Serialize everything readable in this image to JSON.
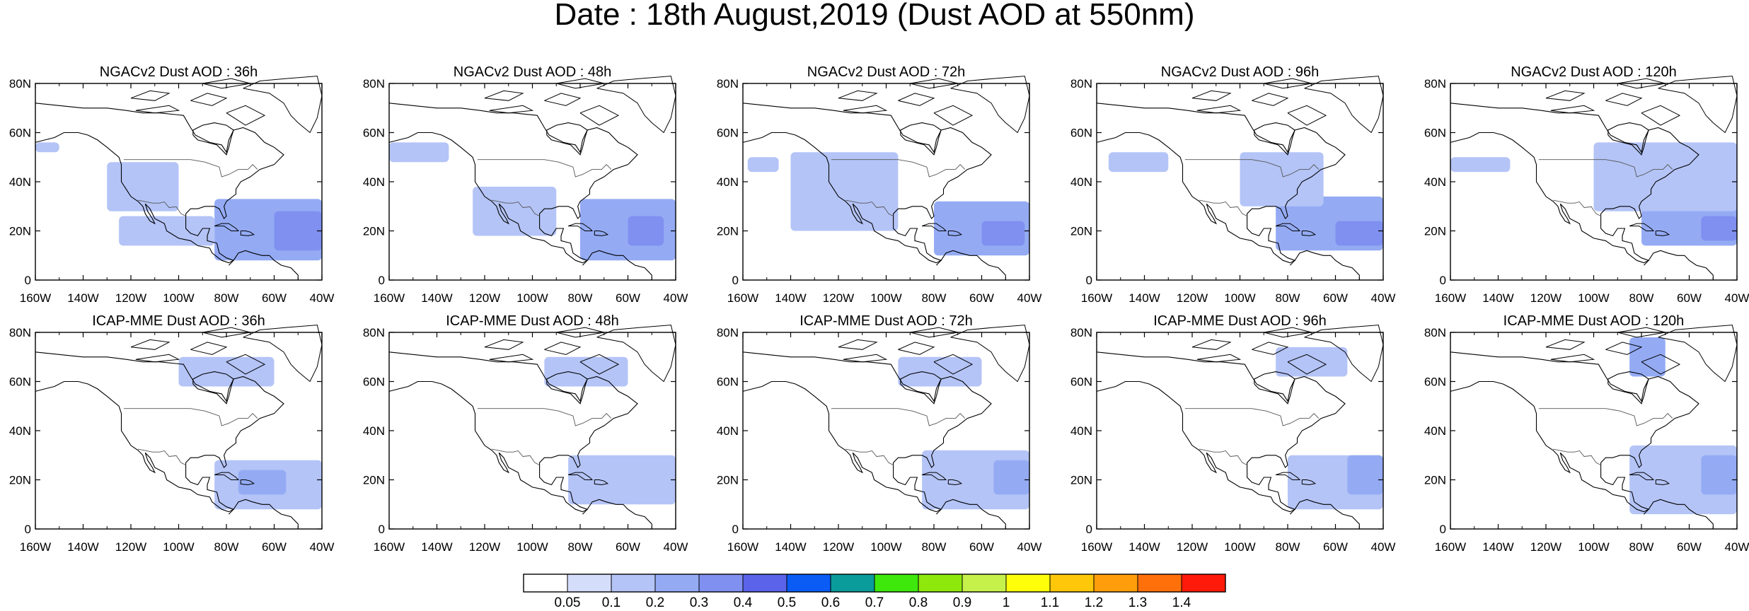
{
  "title": "Date : 18th August,2019 (Dust AOD at 550nm)",
  "panels": [
    {
      "title": "NGACv2 Dust AOD : 36h",
      "model": "NGACv2",
      "lead": "36h"
    },
    {
      "title": "NGACv2 Dust AOD : 48h",
      "model": "NGACv2",
      "lead": "48h"
    },
    {
      "title": "NGACv2 Dust AOD : 72h",
      "model": "NGACv2",
      "lead": "72h"
    },
    {
      "title": "NGACv2 Dust AOD : 96h",
      "model": "NGACv2",
      "lead": "96h"
    },
    {
      "title": "NGACv2 Dust AOD : 120h",
      "model": "NGACv2",
      "lead": "120h"
    },
    {
      "title": "ICAP-MME Dust AOD : 36h",
      "model": "ICAP-MME",
      "lead": "36h"
    },
    {
      "title": "ICAP-MME Dust AOD : 48h",
      "model": "ICAP-MME",
      "lead": "48h"
    },
    {
      "title": "ICAP-MME Dust AOD : 72h",
      "model": "ICAP-MME",
      "lead": "72h"
    },
    {
      "title": "ICAP-MME Dust AOD : 96h",
      "model": "ICAP-MME",
      "lead": "96h"
    },
    {
      "title": "ICAP-MME Dust AOD : 120h",
      "model": "ICAP-MME",
      "lead": "120h"
    }
  ],
  "axes": {
    "lon_ticks": [
      "160W",
      "140W",
      "120W",
      "100W",
      "80W",
      "60W",
      "40W"
    ],
    "lon_values": [
      -160,
      -140,
      -120,
      -100,
      -80,
      -60,
      -40
    ],
    "lat_ticks": [
      "0",
      "20N",
      "40N",
      "60N",
      "80N"
    ],
    "lat_values": [
      0,
      20,
      40,
      60,
      80
    ],
    "lon_range": [
      -160,
      -40
    ],
    "lat_range": [
      0,
      80
    ]
  },
  "colorbar": {
    "labels": [
      "0.05",
      "0.1",
      "0.2",
      "0.3",
      "0.4",
      "0.5",
      "0.6",
      "0.7",
      "0.8",
      "0.9",
      "1",
      "1.1",
      "1.2",
      "1.3",
      "1.4"
    ],
    "colors": [
      "#ffffff",
      "#d4ddfa",
      "#b4c4f7",
      "#94abf4",
      "#7f90f0",
      "#5a63ea",
      "#0a5cf5",
      "#0a9b9b",
      "#3ee80c",
      "#8ee80c",
      "#c6f04a",
      "#fefe0a",
      "#ffc70a",
      "#ff9e0a",
      "#ff6f0a",
      "#ff1a0a"
    ]
  },
  "chart_data": {
    "type": "heatmap",
    "title": "Date : 18th August,2019 (Dust AOD at 550nm)",
    "x_axis": "longitude",
    "y_axis": "latitude",
    "xlim": [
      -160,
      -40
    ],
    "ylim": [
      0,
      80
    ],
    "levels": [
      0.05,
      0.1,
      0.2,
      0.3,
      0.4,
      0.5,
      0.6,
      0.7,
      0.8,
      0.9,
      1,
      1.1,
      1.2,
      1.3,
      1.4
    ],
    "panels": [
      {
        "title": "NGACv2 Dust AOD : 36h",
        "plumes": [
          {
            "lon": [
              -85,
              -40
            ],
            "lat": [
              8,
              33
            ],
            "aod": 0.2
          },
          {
            "lon": [
              -60,
              -40
            ],
            "lat": [
              12,
              28
            ],
            "aod": 0.3
          },
          {
            "lon": [
              -125,
              -85
            ],
            "lat": [
              14,
              26
            ],
            "aod": 0.1
          },
          {
            "lon": [
              -130,
              -100
            ],
            "lat": [
              28,
              48
            ],
            "aod": 0.1
          },
          {
            "lon": [
              -160,
              -150
            ],
            "lat": [
              52,
              56
            ],
            "aod": 0.1
          }
        ]
      },
      {
        "title": "NGACv2 Dust AOD : 48h",
        "plumes": [
          {
            "lon": [
              -80,
              -40
            ],
            "lat": [
              8,
              33
            ],
            "aod": 0.2
          },
          {
            "lon": [
              -60,
              -45
            ],
            "lat": [
              14,
              26
            ],
            "aod": 0.3
          },
          {
            "lon": [
              -125,
              -90
            ],
            "lat": [
              18,
              38
            ],
            "aod": 0.1
          },
          {
            "lon": [
              -160,
              -135
            ],
            "lat": [
              48,
              56
            ],
            "aod": 0.1
          }
        ]
      },
      {
        "title": "NGACv2 Dust AOD : 72h",
        "plumes": [
          {
            "lon": [
              -80,
              -40
            ],
            "lat": [
              10,
              32
            ],
            "aod": 0.2
          },
          {
            "lon": [
              -60,
              -42
            ],
            "lat": [
              14,
              24
            ],
            "aod": 0.3
          },
          {
            "lon": [
              -140,
              -95
            ],
            "lat": [
              20,
              52
            ],
            "aod": 0.1
          },
          {
            "lon": [
              -158,
              -145
            ],
            "lat": [
              44,
              50
            ],
            "aod": 0.1
          }
        ]
      },
      {
        "title": "NGACv2 Dust AOD : 96h",
        "plumes": [
          {
            "lon": [
              -85,
              -40
            ],
            "lat": [
              12,
              34
            ],
            "aod": 0.2
          },
          {
            "lon": [
              -60,
              -40
            ],
            "lat": [
              14,
              24
            ],
            "aod": 0.3
          },
          {
            "lon": [
              -100,
              -65
            ],
            "lat": [
              30,
              52
            ],
            "aod": 0.1
          },
          {
            "lon": [
              -155,
              -130
            ],
            "lat": [
              44,
              52
            ],
            "aod": 0.1
          }
        ]
      },
      {
        "title": "NGACv2 Dust AOD : 120h",
        "plumes": [
          {
            "lon": [
              -80,
              -40
            ],
            "lat": [
              14,
              32
            ],
            "aod": 0.2
          },
          {
            "lon": [
              -55,
              -40
            ],
            "lat": [
              16,
              26
            ],
            "aod": 0.3
          },
          {
            "lon": [
              -100,
              -40
            ],
            "lat": [
              28,
              56
            ],
            "aod": 0.1
          },
          {
            "lon": [
              -160,
              -135
            ],
            "lat": [
              44,
              50
            ],
            "aod": 0.1
          }
        ]
      },
      {
        "title": "ICAP-MME Dust AOD : 36h",
        "plumes": [
          {
            "lon": [
              -85,
              -40
            ],
            "lat": [
              8,
              28
            ],
            "aod": 0.1
          },
          {
            "lon": [
              -75,
              -55
            ],
            "lat": [
              14,
              24
            ],
            "aod": 0.2
          },
          {
            "lon": [
              -100,
              -60
            ],
            "lat": [
              58,
              70
            ],
            "aod": 0.1
          }
        ]
      },
      {
        "title": "ICAP-MME Dust AOD : 48h",
        "plumes": [
          {
            "lon": [
              -85,
              -40
            ],
            "lat": [
              10,
              30
            ],
            "aod": 0.1
          },
          {
            "lon": [
              -95,
              -60
            ],
            "lat": [
              58,
              70
            ],
            "aod": 0.1
          }
        ]
      },
      {
        "title": "ICAP-MME Dust AOD : 72h",
        "plumes": [
          {
            "lon": [
              -85,
              -40
            ],
            "lat": [
              8,
              32
            ],
            "aod": 0.1
          },
          {
            "lon": [
              -55,
              -40
            ],
            "lat": [
              14,
              28
            ],
            "aod": 0.2
          },
          {
            "lon": [
              -95,
              -60
            ],
            "lat": [
              58,
              70
            ],
            "aod": 0.1
          }
        ]
      },
      {
        "title": "ICAP-MME Dust AOD : 96h",
        "plumes": [
          {
            "lon": [
              -80,
              -40
            ],
            "lat": [
              8,
              30
            ],
            "aod": 0.1
          },
          {
            "lon": [
              -55,
              -40
            ],
            "lat": [
              14,
              30
            ],
            "aod": 0.2
          },
          {
            "lon": [
              -85,
              -55
            ],
            "lat": [
              62,
              74
            ],
            "aod": 0.1
          }
        ]
      },
      {
        "title": "ICAP-MME Dust AOD : 120h",
        "plumes": [
          {
            "lon": [
              -85,
              -40
            ],
            "lat": [
              6,
              34
            ],
            "aod": 0.1
          },
          {
            "lon": [
              -55,
              -40
            ],
            "lat": [
              14,
              30
            ],
            "aod": 0.2
          },
          {
            "lon": [
              -85,
              -70
            ],
            "lat": [
              62,
              78
            ],
            "aod": 0.2
          }
        ]
      }
    ]
  }
}
